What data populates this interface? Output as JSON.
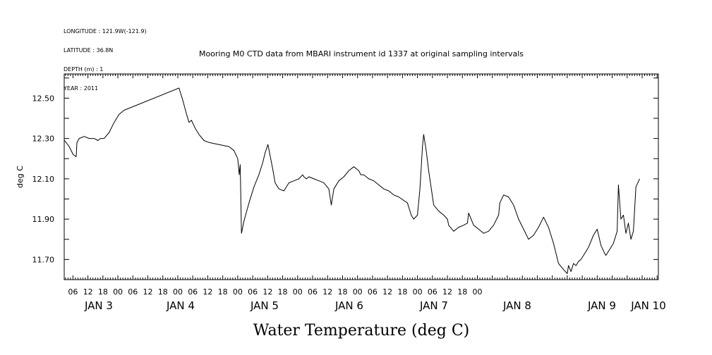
{
  "header": {
    "longitude": "LONGITUDE : 121.9W(-121.9)",
    "latitude": "LATITUDE : 36.8N",
    "depth": "DEPTH (m) : 1",
    "year": "YEAR : 2011"
  },
  "chart_data": {
    "type": "line",
    "title": "Mooring M0 CTD data from MBARI instrument id 1337 at original sampling intervals",
    "xlabel": "Water Temperature (deg C)",
    "ylabel": "deg C",
    "ylim": [
      11.6,
      12.62
    ],
    "yticks": [
      11.7,
      11.9,
      12.1,
      12.3,
      12.5
    ],
    "ytick_labels": [
      "11.70",
      "11.90",
      "12.10",
      "12.30",
      "12.50"
    ],
    "xlim_hours": [
      2.5,
      240.5
    ],
    "hour_ticks": [
      "06",
      "12",
      "18",
      "00",
      "06",
      "12",
      "18",
      "00",
      "06",
      "12",
      "18",
      "00",
      "06",
      "12",
      "18",
      "00",
      "06",
      "12",
      "18",
      "00",
      "06",
      "12",
      "18",
      "00",
      "06",
      "12",
      "18",
      "00"
    ],
    "day_labels": [
      "JAN 3",
      "JAN 4",
      "JAN 5",
      "JAN 6",
      "JAN 7",
      "JAN 8",
      "JAN 9",
      "JAN 10"
    ],
    "grid": false,
    "series": [
      {
        "x_hours_since_jan3": [
          0.1,
          2,
          3.6,
          4.8,
          5.1,
          6,
          8,
          10,
          12,
          13.5,
          14.5,
          16,
          18,
          20,
          22,
          24,
          46,
          47.5,
          49,
          50,
          51,
          52.5,
          54,
          56,
          58,
          62,
          66,
          68,
          69.5,
          70.1,
          70.5,
          71,
          72,
          74,
          76,
          78,
          79.5,
          80.5,
          81.6,
          83.5,
          84.5,
          86,
          88,
          90,
          92,
          94,
          95.5,
          96,
          97,
          98,
          100,
          102,
          104,
          106,
          107,
          108,
          110,
          112,
          114,
          116,
          118,
          118.8,
          120,
          122,
          124,
          126,
          128,
          130,
          132,
          134,
          137.5,
          139,
          140,
          141.5,
          142.5,
          143.5,
          144,
          145,
          146,
          148,
          150,
          152,
          153.5,
          154,
          156,
          158,
          160,
          161.5,
          162,
          164,
          166,
          168,
          170,
          172,
          174,
          174.5,
          176,
          178,
          180,
          182,
          184,
          186,
          188,
          190,
          192,
          194,
          196,
          198,
          200,
          201.5,
          202,
          203,
          204,
          205,
          206,
          207,
          208,
          210,
          212,
          213.5,
          215,
          216.5,
          217,
          218,
          220,
          221.5,
          222,
          223,
          224,
          225,
          226,
          227,
          228,
          229,
          230.5,
          233
        ],
        "values": [
          12.29,
          12.26,
          12.22,
          12.21,
          12.28,
          12.3,
          12.31,
          12.3,
          12.3,
          12.29,
          12.3,
          12.3,
          12.33,
          12.38,
          12.42,
          12.44,
          12.55,
          12.49,
          12.42,
          12.38,
          12.39,
          12.35,
          12.32,
          12.29,
          12.28,
          12.27,
          12.26,
          12.24,
          12.2,
          12.12,
          12.17,
          11.83,
          11.89,
          11.98,
          12.06,
          12.12,
          12.18,
          12.23,
          12.27,
          12.15,
          12.08,
          12.05,
          12.04,
          12.08,
          12.09,
          12.1,
          12.12,
          12.11,
          12.1,
          12.11,
          12.1,
          12.09,
          12.08,
          12.05,
          11.97,
          12.05,
          12.09,
          12.11,
          12.14,
          12.16,
          12.14,
          12.12,
          12.12,
          12.1,
          12.09,
          12.07,
          12.05,
          12.04,
          12.02,
          12.01,
          11.98,
          11.92,
          11.9,
          11.92,
          12.05,
          12.26,
          12.32,
          12.24,
          12.14,
          11.97,
          11.94,
          11.92,
          11.9,
          11.87,
          11.84,
          11.86,
          11.87,
          11.88,
          11.93,
          11.87,
          11.85,
          11.83,
          11.84,
          11.87,
          11.92,
          11.98,
          12.02,
          12.01,
          11.97,
          11.9,
          11.85,
          11.8,
          11.82,
          11.86,
          11.91,
          11.86,
          11.78,
          11.68,
          11.65,
          11.63,
          11.67,
          11.64,
          11.68,
          11.67,
          11.69,
          11.7,
          11.72,
          11.76,
          11.82,
          11.85,
          11.77,
          11.73,
          11.72,
          11.74,
          11.78,
          11.84,
          12.07,
          11.9,
          11.92,
          11.83,
          11.88,
          11.8,
          11.84,
          12.06,
          12.1
        ]
      }
    ]
  }
}
